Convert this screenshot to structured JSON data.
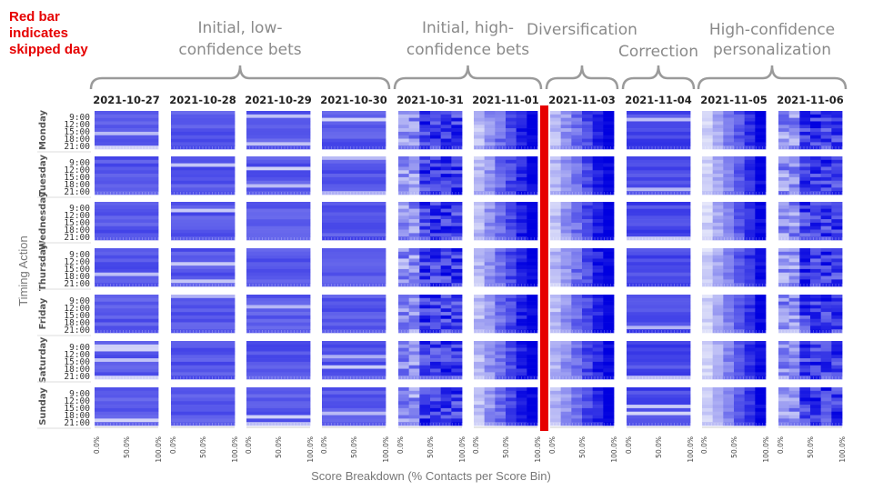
{
  "annotation": [
    "Red bar",
    "indicates",
    "skipped day"
  ],
  "phases": [
    {
      "label": [
        "Initial, low-",
        "confidence bets"
      ],
      "from": 0,
      "to": 3
    },
    {
      "label": [
        "Initial, high-",
        "confidence bets"
      ],
      "from": 4,
      "to": 5
    },
    {
      "label": [
        "Diversification"
      ],
      "from": 6,
      "to": 6
    },
    {
      "label": [
        "Correction"
      ],
      "from": 7,
      "to": 7
    },
    {
      "label": [
        "High-confidence",
        "personalization"
      ],
      "from": 8,
      "to": 9
    }
  ],
  "chart_data": {
    "type": "heatmap",
    "dates": [
      "2021-10-27",
      "2021-10-28",
      "2021-10-29",
      "2021-10-30",
      "2021-10-31",
      "2021-11-01",
      "2021-11-03",
      "2021-11-04",
      "2021-11-05",
      "2021-11-06"
    ],
    "days": [
      "Monday",
      "Tuesday",
      "Wednesday",
      "Thursday",
      "Friday",
      "Saturday",
      "Sunday"
    ],
    "times": [
      "9:00",
      "12:00",
      "15:00",
      "18:00",
      "21:00"
    ],
    "x_ticks": [
      "0.0%",
      "50.0%",
      "100.0%"
    ],
    "xlabel": "Score Breakdown (% Contacts per Score Bin)",
    "ylabel": "Timing Action",
    "skipped_after_date_index": 5,
    "colors": {
      "skipped_bar": "#e60000",
      "low": "#eef0fb",
      "high": "#0000e0"
    },
    "style_per_date": [
      "flat-low",
      "flat-low",
      "flat-low",
      "flat-low",
      "high-contrast",
      "gradient",
      "gradient",
      "flat-mid",
      "gradient-personalized",
      "high-contrast"
    ]
  }
}
